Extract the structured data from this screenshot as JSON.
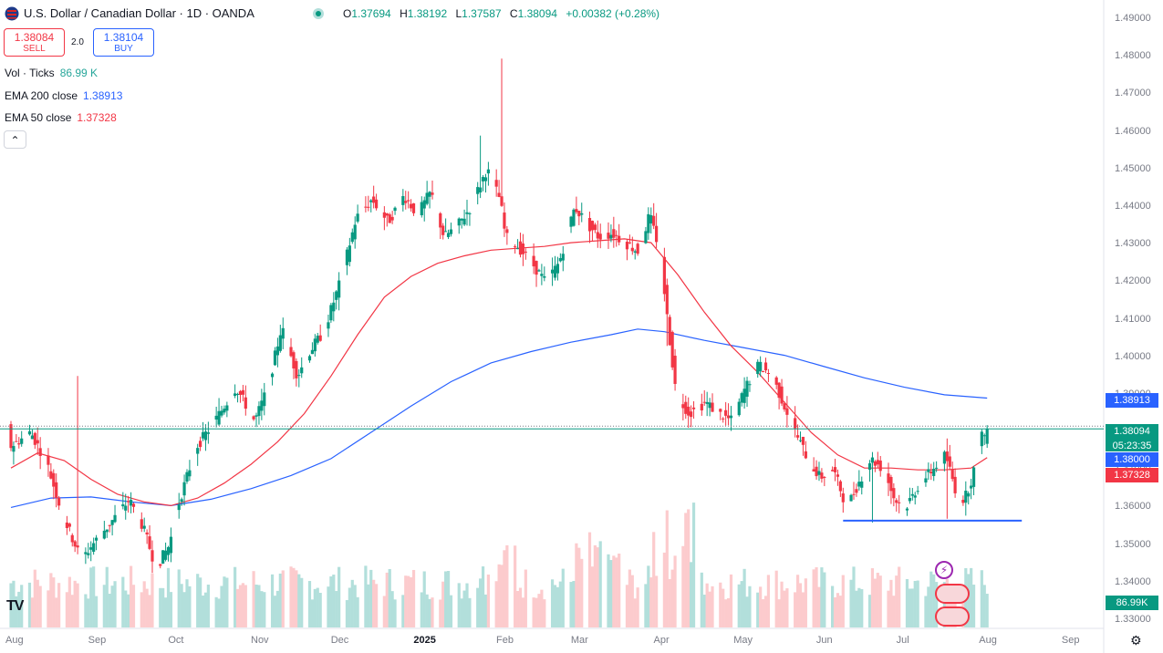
{
  "header": {
    "title": "U.S. Dollar / Canadian Dollar · 1D · OANDA",
    "ohlc": [
      {
        "k": "O",
        "v": "1.37694"
      },
      {
        "k": "H",
        "v": "1.38192"
      },
      {
        "k": "L",
        "v": "1.37587"
      },
      {
        "k": "C",
        "v": "1.38094"
      },
      {
        "k": "",
        "v": "+0.00382 (+0.28%)"
      }
    ]
  },
  "trade": {
    "sell_price": "1.38084",
    "sell_label": "SELL",
    "spread": "2.0",
    "buy_price": "1.38104",
    "buy_label": "BUY"
  },
  "indicators": [
    {
      "label": "Vol · Ticks",
      "value": "86.99 K",
      "color": "#26a69a"
    },
    {
      "label": "EMA 200 close",
      "value": "1.38913",
      "color": "#2962ff"
    },
    {
      "label": "EMA 50 close",
      "value": "1.37328",
      "color": "#f23645"
    }
  ],
  "price_tags": [
    {
      "text": "1.38913",
      "color": "#2962ff",
      "price": 1.38913
    },
    {
      "text": "1.38094",
      "color": "#089981",
      "price": 1.38094
    },
    {
      "text": "05:23:35",
      "color": "#089981",
      "price": 1.37894
    },
    {
      "text": "1.38000",
      "color": "#2962ff",
      "price": 1.378
    },
    {
      "text": "1.37328",
      "color": "#f23645",
      "price": 1.37328
    }
  ],
  "volume_tag": {
    "text": "86.99K",
    "color": "#089981"
  },
  "colors": {
    "up": "#089981",
    "down": "#f23645",
    "ema200": "#2962ff",
    "ema50": "#f23645",
    "support": "#2962ff"
  },
  "chart_data": {
    "type": "candlestick",
    "symbol": "USDCAD",
    "timeframe": "1D",
    "ylim": [
      1.325,
      1.495
    ],
    "y_ticks": [
      "1.49000",
      "1.48000",
      "1.47000",
      "1.46000",
      "1.45000",
      "1.44000",
      "1.43000",
      "1.42000",
      "1.41000",
      "1.40000",
      "1.39000",
      "1.38000",
      "1.37000",
      "1.36000",
      "1.35000",
      "1.34000",
      "1.33000"
    ],
    "x_ticks": [
      "Aug",
      "Sep",
      "Oct",
      "Nov",
      "Dec",
      "2025",
      "Feb",
      "Mar",
      "Apr",
      "May",
      "Jun",
      "Jul",
      "Aug",
      "Sep"
    ],
    "x_tick_days": [
      0,
      31,
      61,
      92,
      122,
      153,
      184,
      212,
      243,
      273,
      304,
      334,
      365,
      396
    ],
    "day_range": [
      0,
      408
    ],
    "price_path": [
      [
        0,
        1.376
      ],
      [
        8,
        1.38
      ],
      [
        14,
        1.372
      ],
      [
        20,
        1.358
      ],
      [
        27,
        1.346
      ],
      [
        31,
        1.35
      ],
      [
        38,
        1.356
      ],
      [
        45,
        1.362
      ],
      [
        50,
        1.355
      ],
      [
        55,
        1.344
      ],
      [
        60,
        1.35
      ],
      [
        63,
        1.36
      ],
      [
        70,
        1.376
      ],
      [
        77,
        1.383
      ],
      [
        85,
        1.392
      ],
      [
        92,
        1.383
      ],
      [
        97,
        1.392
      ],
      [
        102,
        1.408
      ],
      [
        108,
        1.395
      ],
      [
        113,
        1.402
      ],
      [
        118,
        1.407
      ],
      [
        124,
        1.42
      ],
      [
        130,
        1.437
      ],
      [
        136,
        1.442
      ],
      [
        142,
        1.436
      ],
      [
        148,
        1.443
      ],
      [
        153,
        1.438
      ],
      [
        158,
        1.444
      ],
      [
        163,
        1.432
      ],
      [
        168,
        1.435
      ],
      [
        173,
        1.44
      ],
      [
        179,
        1.45
      ],
      [
        184,
        1.442
      ],
      [
        186,
        1.432
      ],
      [
        190,
        1.43
      ],
      [
        196,
        1.425
      ],
      [
        201,
        1.42
      ],
      [
        206,
        1.425
      ],
      [
        212,
        1.44
      ],
      [
        216,
        1.436
      ],
      [
        221,
        1.432
      ],
      [
        226,
        1.433
      ],
      [
        232,
        1.43
      ],
      [
        236,
        1.428
      ],
      [
        240,
        1.438
      ],
      [
        244,
        1.428
      ],
      [
        247,
        1.408
      ],
      [
        250,
        1.39
      ],
      [
        255,
        1.385
      ],
      [
        261,
        1.388
      ],
      [
        266,
        1.385
      ],
      [
        271,
        1.383
      ],
      [
        276,
        1.392
      ],
      [
        281,
        1.398
      ],
      [
        286,
        1.395
      ],
      [
        290,
        1.388
      ],
      [
        296,
        1.378
      ],
      [
        300,
        1.372
      ],
      [
        304,
        1.368
      ],
      [
        309,
        1.37
      ],
      [
        314,
        1.36
      ],
      [
        318,
        1.366
      ],
      [
        323,
        1.373
      ],
      [
        328,
        1.37
      ],
      [
        332,
        1.362
      ],
      [
        336,
        1.36
      ],
      [
        341,
        1.366
      ],
      [
        346,
        1.37
      ],
      [
        351,
        1.374
      ],
      [
        355,
        1.364
      ],
      [
        358,
        1.362
      ],
      [
        361,
        1.368
      ],
      [
        364,
        1.378
      ],
      [
        366,
        1.381
      ]
    ],
    "spikes": [
      [
        25,
        1.395
      ],
      [
        62,
        1.343
      ],
      [
        184,
        1.4795
      ],
      [
        184,
        1.472
      ],
      [
        176,
        1.459
      ],
      [
        185,
        1.437
      ],
      [
        216,
        1.453
      ],
      [
        231,
        1.426
      ],
      [
        246,
        1.403
      ],
      [
        250,
        1.383
      ],
      [
        323,
        1.356
      ],
      [
        351,
        1.357
      ]
    ],
    "ema200": [
      [
        0,
        1.36
      ],
      [
        15,
        1.3625
      ],
      [
        30,
        1.3628
      ],
      [
        45,
        1.3615
      ],
      [
        60,
        1.3605
      ],
      [
        75,
        1.3622
      ],
      [
        90,
        1.365
      ],
      [
        105,
        1.3685
      ],
      [
        120,
        1.373
      ],
      [
        135,
        1.38
      ],
      [
        150,
        1.387
      ],
      [
        165,
        1.3935
      ],
      [
        180,
        1.3985
      ],
      [
        195,
        1.4015
      ],
      [
        210,
        1.404
      ],
      [
        225,
        1.406
      ],
      [
        235,
        1.4075
      ],
      [
        245,
        1.4068
      ],
      [
        260,
        1.4045
      ],
      [
        275,
        1.4025
      ],
      [
        290,
        1.4005
      ],
      [
        305,
        1.3975
      ],
      [
        320,
        1.3945
      ],
      [
        335,
        1.392
      ],
      [
        350,
        1.39
      ],
      [
        366,
        1.38913
      ]
    ],
    "ema50": [
      [
        0,
        1.3705
      ],
      [
        10,
        1.3745
      ],
      [
        20,
        1.3725
      ],
      [
        30,
        1.3675
      ],
      [
        40,
        1.3635
      ],
      [
        50,
        1.3615
      ],
      [
        60,
        1.3605
      ],
      [
        70,
        1.3625
      ],
      [
        80,
        1.3665
      ],
      [
        90,
        1.3715
      ],
      [
        100,
        1.3775
      ],
      [
        110,
        1.385
      ],
      [
        120,
        1.395
      ],
      [
        130,
        1.406
      ],
      [
        140,
        1.416
      ],
      [
        150,
        1.4215
      ],
      [
        160,
        1.425
      ],
      [
        170,
        1.427
      ],
      [
        180,
        1.4285
      ],
      [
        190,
        1.429
      ],
      [
        200,
        1.4295
      ],
      [
        210,
        1.4305
      ],
      [
        220,
        1.431
      ],
      [
        230,
        1.4315
      ],
      [
        240,
        1.4305
      ],
      [
        250,
        1.422
      ],
      [
        260,
        1.412
      ],
      [
        270,
        1.403
      ],
      [
        280,
        1.396
      ],
      [
        290,
        1.388
      ],
      [
        300,
        1.38
      ],
      [
        310,
        1.374
      ],
      [
        320,
        1.3705
      ],
      [
        330,
        1.3705
      ],
      [
        340,
        1.37
      ],
      [
        350,
        1.37
      ],
      [
        360,
        1.3705
      ],
      [
        366,
        1.37328
      ]
    ],
    "support_line": {
      "price": 1.3565,
      "from_day": 312,
      "to_day": 379
    },
    "last_price": 1.38094,
    "volume": {
      "max_ticks_k": 400,
      "last_k": 86.99
    }
  }
}
